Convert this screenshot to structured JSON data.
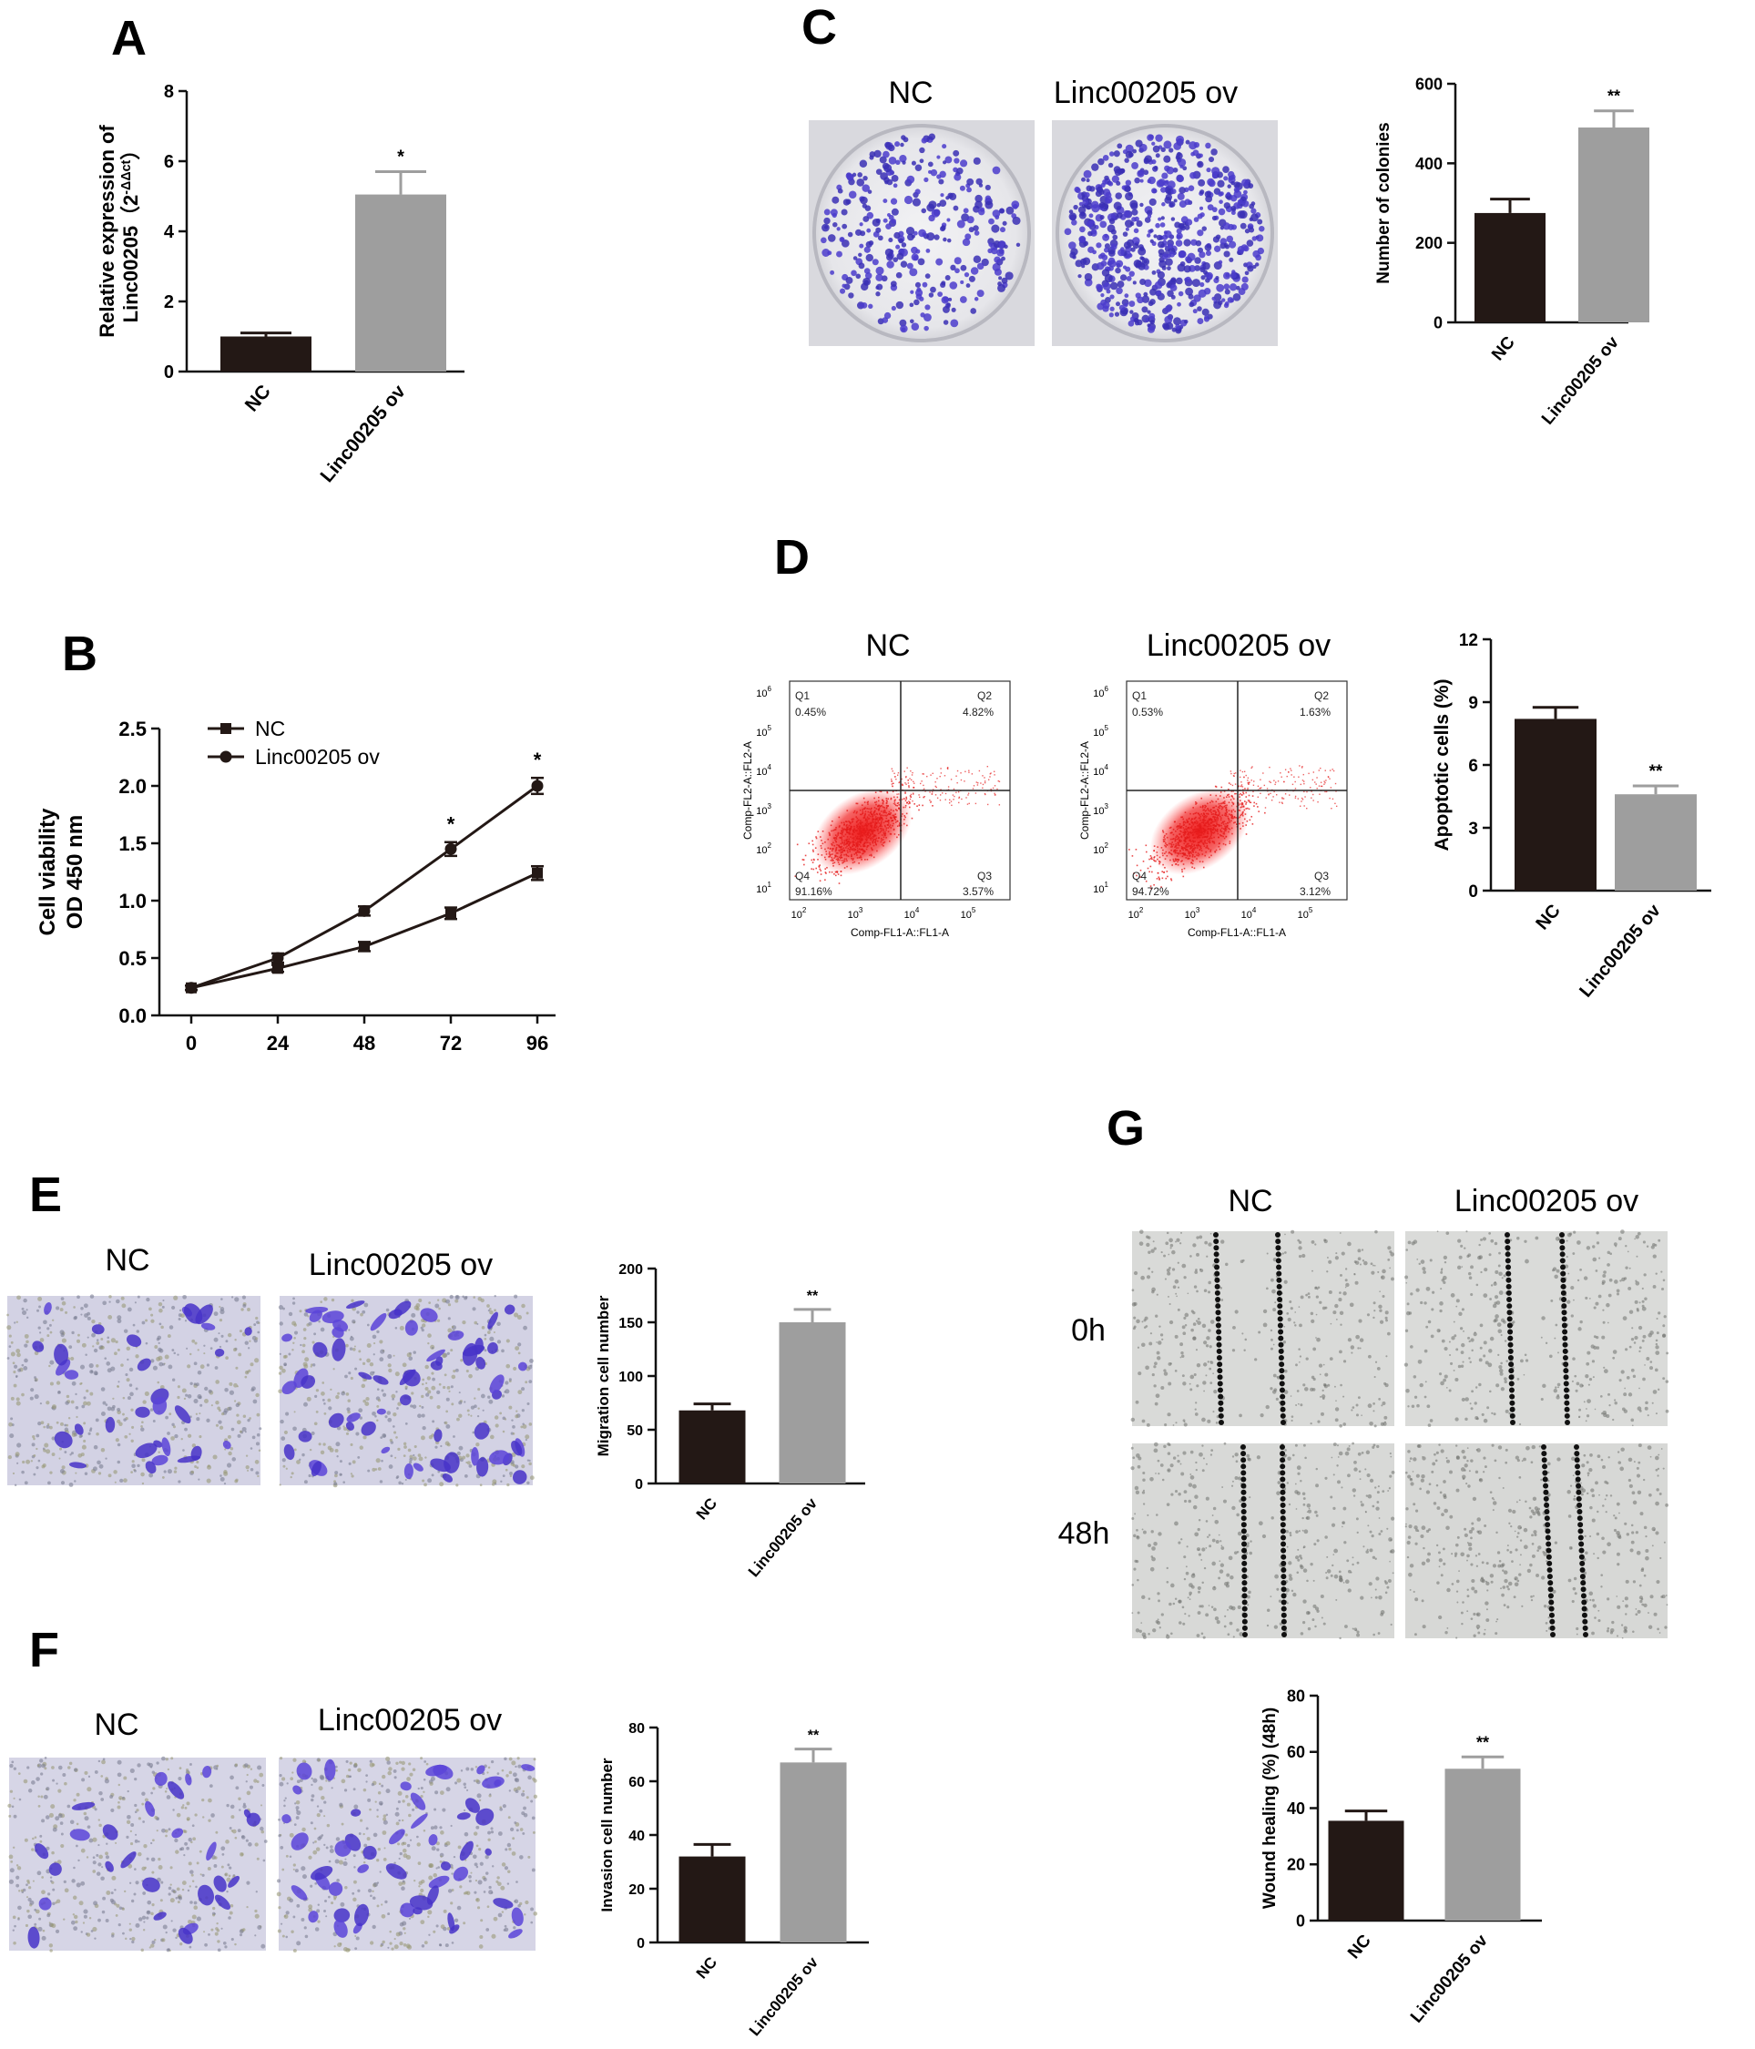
{
  "panels": {
    "A": "A",
    "B": "B",
    "C": "C",
    "D": "D",
    "E": "E",
    "F": "F",
    "G": "G"
  },
  "image_panels": {
    "C": {
      "labels": [
        "NC",
        "Linc00205 ov"
      ]
    },
    "D": {
      "labels": [
        "NC",
        "Linc00205 ov"
      ]
    },
    "E": {
      "labels": [
        "NC",
        "Linc00205 ov"
      ]
    },
    "F": {
      "labels": [
        "NC",
        "Linc00205 ov"
      ]
    },
    "G": {
      "labels": [
        "NC",
        "Linc00205 ov"
      ],
      "rows": [
        "0h",
        "48h"
      ]
    }
  },
  "flow": {
    "quadrants": [
      "Q1",
      "Q2",
      "Q3",
      "Q4"
    ],
    "x_axis": "Comp-FL1-A::FL1-A",
    "y_axis": "Comp-FL2-A::FL2-A",
    "decades": [
      "10",
      "10",
      "10",
      "10",
      "10",
      "10"
    ],
    "exponents": [
      "1",
      "2",
      "3",
      "4",
      "5",
      "6"
    ],
    "x_exponents": [
      "2",
      "3",
      "4",
      "5"
    ],
    "plots": [
      {
        "q1": "0.45%",
        "q2": "4.82%",
        "q3": "3.57%",
        "q4": "91.16%"
      },
      {
        "q1": "0.53%",
        "q2": "1.63%",
        "q3": "3.12%",
        "q4": "94.72%"
      }
    ]
  },
  "chart_data": [
    {
      "id": "A",
      "type": "bar",
      "categories": [
        "NC",
        "Linc00205 ov"
      ],
      "values": [
        1.0,
        5.05
      ],
      "errors": [
        0.1,
        0.65
      ],
      "ylabel_line1": "Relative expression of",
      "ylabel_line2": "Linc00205（2",
      "ylabel_sup": "-ΔΔct",
      "ylabel_close": "）",
      "ylim": [
        0,
        8
      ],
      "yticks": [
        "0",
        "2",
        "4",
        "6",
        "8"
      ],
      "significance": [
        "",
        "*"
      ],
      "colors": [
        "#231815",
        "#9e9e9e"
      ]
    },
    {
      "id": "B",
      "type": "line",
      "x": [
        0,
        24,
        48,
        72,
        96
      ],
      "xticks": [
        "0",
        "24",
        "48",
        "72",
        "96"
      ],
      "series": [
        {
          "name": "NC",
          "marker": "square",
          "values": [
            0.24,
            0.41,
            0.6,
            0.89,
            1.24
          ],
          "errors": [
            0.02,
            0.03,
            0.04,
            0.05,
            0.06
          ]
        },
        {
          "name": "Linc00205 ov",
          "marker": "circle",
          "values": [
            0.24,
            0.5,
            0.91,
            1.45,
            2.0
          ],
          "errors": [
            0.02,
            0.04,
            0.04,
            0.06,
            0.07
          ]
        }
      ],
      "ylabel_line1": "Cell viability",
      "ylabel_line2": "OD 450 nm",
      "ylim": [
        0,
        2.5
      ],
      "yticks": [
        "0.0",
        "0.5",
        "1.0",
        "1.5",
        "2.0",
        "2.5"
      ],
      "significance": [
        "",
        "",
        "",
        "*",
        "*"
      ],
      "legend": "top-left"
    },
    {
      "id": "C",
      "type": "bar",
      "categories": [
        "NC",
        "Linc00205 ov"
      ],
      "values": [
        275,
        490
      ],
      "errors": [
        35,
        42
      ],
      "ylabel": "Number of colonies",
      "ylim": [
        0,
        600
      ],
      "yticks": [
        "0",
        "200",
        "400",
        "600"
      ],
      "significance": [
        "",
        "**"
      ],
      "colors": [
        "#231815",
        "#9e9e9e"
      ]
    },
    {
      "id": "D",
      "type": "bar",
      "categories": [
        "NC",
        "Linc00205 ov"
      ],
      "values": [
        8.2,
        4.6
      ],
      "errors": [
        0.55,
        0.4
      ],
      "ylabel": "Apoptotic cells (%)",
      "ylim": [
        0,
        12
      ],
      "yticks": [
        "0",
        "3",
        "6",
        "9",
        "12"
      ],
      "significance": [
        "",
        "**"
      ],
      "colors": [
        "#231815",
        "#9e9e9e"
      ]
    },
    {
      "id": "E",
      "type": "bar",
      "categories": [
        "NC",
        "Linc00205 ov"
      ],
      "values": [
        68,
        150
      ],
      "errors": [
        6,
        12
      ],
      "ylabel": "Migration cell number",
      "ylim": [
        0,
        200
      ],
      "yticks": [
        "0",
        "50",
        "100",
        "150",
        "200"
      ],
      "significance": [
        "",
        "**"
      ],
      "colors": [
        "#231815",
        "#9e9e9e"
      ]
    },
    {
      "id": "F",
      "type": "bar",
      "categories": [
        "NC",
        "Linc00205 ov"
      ],
      "values": [
        32,
        67
      ],
      "errors": [
        4.5,
        5
      ],
      "ylabel": "Invasion cell number",
      "ylim": [
        0,
        80
      ],
      "yticks": [
        "0",
        "20",
        "40",
        "60",
        "80"
      ],
      "significance": [
        "",
        "**"
      ],
      "colors": [
        "#231815",
        "#9e9e9e"
      ]
    },
    {
      "id": "G",
      "type": "bar",
      "categories": [
        "NC",
        "Linc00205 ov"
      ],
      "values": [
        35.5,
        54
      ],
      "errors": [
        3.5,
        4.2
      ],
      "ylabel": "Wound healing (%) (48h)",
      "ylim": [
        0,
        80
      ],
      "yticks": [
        "0",
        "20",
        "40",
        "60",
        "80"
      ],
      "significance": [
        "",
        "**"
      ],
      "colors": [
        "#231815",
        "#9e9e9e"
      ]
    }
  ]
}
